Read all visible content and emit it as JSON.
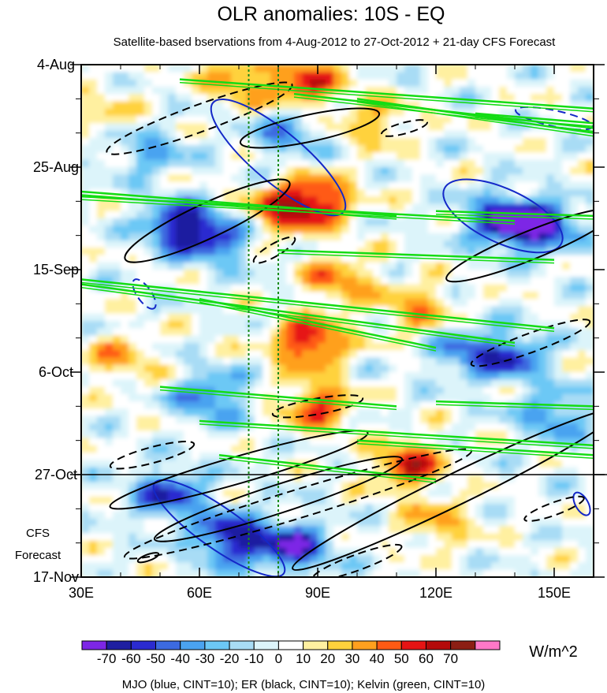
{
  "chart_data": {
    "type": "heatmap",
    "title": "OLR anomalies: 10S - EQ",
    "subtitle": "Satellite-based bservations from 4-Aug-2012 to 27-Oct-2012 + 21-day CFS Forecast",
    "x_axis": {
      "range": [
        30,
        160
      ],
      "ticks": [
        {
          "value": 30,
          "label": "30E"
        },
        {
          "value": 60,
          "label": "60E"
        },
        {
          "value": 90,
          "label": "90E"
        },
        {
          "value": 120,
          "label": "120E"
        },
        {
          "value": 150,
          "label": "150E"
        }
      ],
      "minor_step": 10
    },
    "y_axis": {
      "range_days": [
        0,
        105
      ],
      "direction": "down",
      "ticks": [
        {
          "day": 0,
          "label": "4-Aug"
        },
        {
          "day": 21,
          "label": "25-Aug"
        },
        {
          "day": 42,
          "label": "15-Sep"
        },
        {
          "day": 63,
          "label": "6-Oct"
        },
        {
          "day": 84,
          "label": "27-Oct"
        },
        {
          "day": 105,
          "label": "17-Nov"
        }
      ],
      "minor_step_days": 7
    },
    "forecast": {
      "start_day": 84,
      "label_line1": "CFS",
      "label_line2": "Forecast"
    },
    "reference_lines_lon": [
      72.5,
      80
    ],
    "colorbar": {
      "unit": "W/m^2",
      "levels": [
        -70,
        -60,
        -50,
        -40,
        -30,
        -20,
        -10,
        0,
        10,
        20,
        30,
        40,
        50,
        60,
        70
      ],
      "colors": [
        "#7d26e6",
        "#1e1ea0",
        "#2b2bd0",
        "#3c6ae0",
        "#4aa3f0",
        "#6cc8f5",
        "#a8dcf5",
        "#dcf4fa",
        "#ffffff",
        "#fff0a0",
        "#ffd23c",
        "#ffa01e",
        "#ff5a14",
        "#e61414",
        "#b40a0a",
        "#8c1e14",
        "#ff78c8"
      ]
    },
    "anomaly_features": [
      {
        "lon": 87,
        "day": 4,
        "value": 55
      },
      {
        "lon": 70,
        "day": 3,
        "value": 40
      },
      {
        "lon": 82,
        "day": 14,
        "value": -35
      },
      {
        "lon": 105,
        "day": 12,
        "value": 30
      },
      {
        "lon": 90,
        "day": 28,
        "value": 60
      },
      {
        "lon": 80,
        "day": 30,
        "value": 45
      },
      {
        "lon": 55,
        "day": 33,
        "value": -65
      },
      {
        "lon": 65,
        "day": 36,
        "value": -45
      },
      {
        "lon": 146,
        "day": 33,
        "value": -75
      },
      {
        "lon": 136,
        "day": 32,
        "value": -55
      },
      {
        "lon": 88,
        "day": 57,
        "value": 65
      },
      {
        "lon": 95,
        "day": 44,
        "value": 40
      },
      {
        "lon": 90,
        "day": 70,
        "value": 50
      },
      {
        "lon": 113,
        "day": 82,
        "value": 55
      },
      {
        "lon": 68,
        "day": 97,
        "value": -70
      },
      {
        "lon": 52,
        "day": 88,
        "value": -55
      },
      {
        "lon": 84,
        "day": 99,
        "value": -65
      },
      {
        "lon": 47,
        "day": 18,
        "value": -30
      },
      {
        "lon": 63,
        "day": 68,
        "value": -45
      },
      {
        "lon": 115,
        "day": 50,
        "value": 35
      },
      {
        "lon": 128,
        "day": 59,
        "value": -40
      },
      {
        "lon": 140,
        "day": 60,
        "value": -45
      },
      {
        "lon": 150,
        "day": 72,
        "value": -40
      },
      {
        "lon": 120,
        "day": 94,
        "value": 30
      },
      {
        "lon": 40,
        "day": 60,
        "value": 30
      },
      {
        "lon": 35,
        "day": 10,
        "value": 20
      }
    ],
    "overlays": {
      "legend": "MJO (blue, CINT=10); ER (black, CINT=10); Kelvin (green, CINT=10)",
      "mjo_color": "#1428c8",
      "er_color": "#000000",
      "kelvin_color": "#14dc14"
    }
  }
}
